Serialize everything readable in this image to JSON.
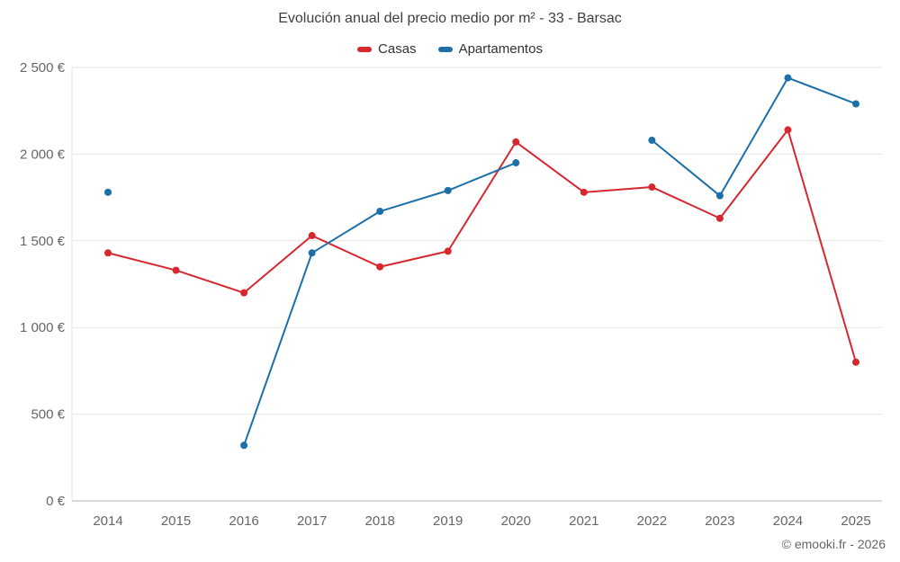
{
  "chart": {
    "title": "Evolución anual del precio medio por m² - 33 - Barsac",
    "footer": "© emooki.fr - 2026"
  },
  "chart_data": {
    "type": "line",
    "x": [
      2014,
      2015,
      2016,
      2017,
      2018,
      2019,
      2020,
      2021,
      2022,
      2023,
      2024,
      2025
    ],
    "series": [
      {
        "name": "Casas",
        "color": "#d7282f",
        "values": [
          1430,
          1330,
          1200,
          1530,
          1350,
          1440,
          2070,
          1780,
          1810,
          1630,
          2140,
          800
        ]
      },
      {
        "name": "Apartamentos",
        "color": "#1c6fa8",
        "values": [
          1780,
          null,
          320,
          1430,
          1670,
          1790,
          1950,
          null,
          2080,
          1760,
          2440,
          2290
        ]
      }
    ],
    "ylim": [
      0,
      2500
    ],
    "yticks": [
      0,
      500,
      1000,
      1500,
      2000,
      2500
    ],
    "ytick_labels": [
      "0 €",
      "500 €",
      "1 000 €",
      "1 500 €",
      "2 000 €",
      "2 500 €"
    ],
    "grid": true,
    "legend_position": "top",
    "grid_color": "#e6e6e6",
    "axis_color": "#b3b3b3",
    "marker_radius": 4,
    "line_width": 2
  }
}
